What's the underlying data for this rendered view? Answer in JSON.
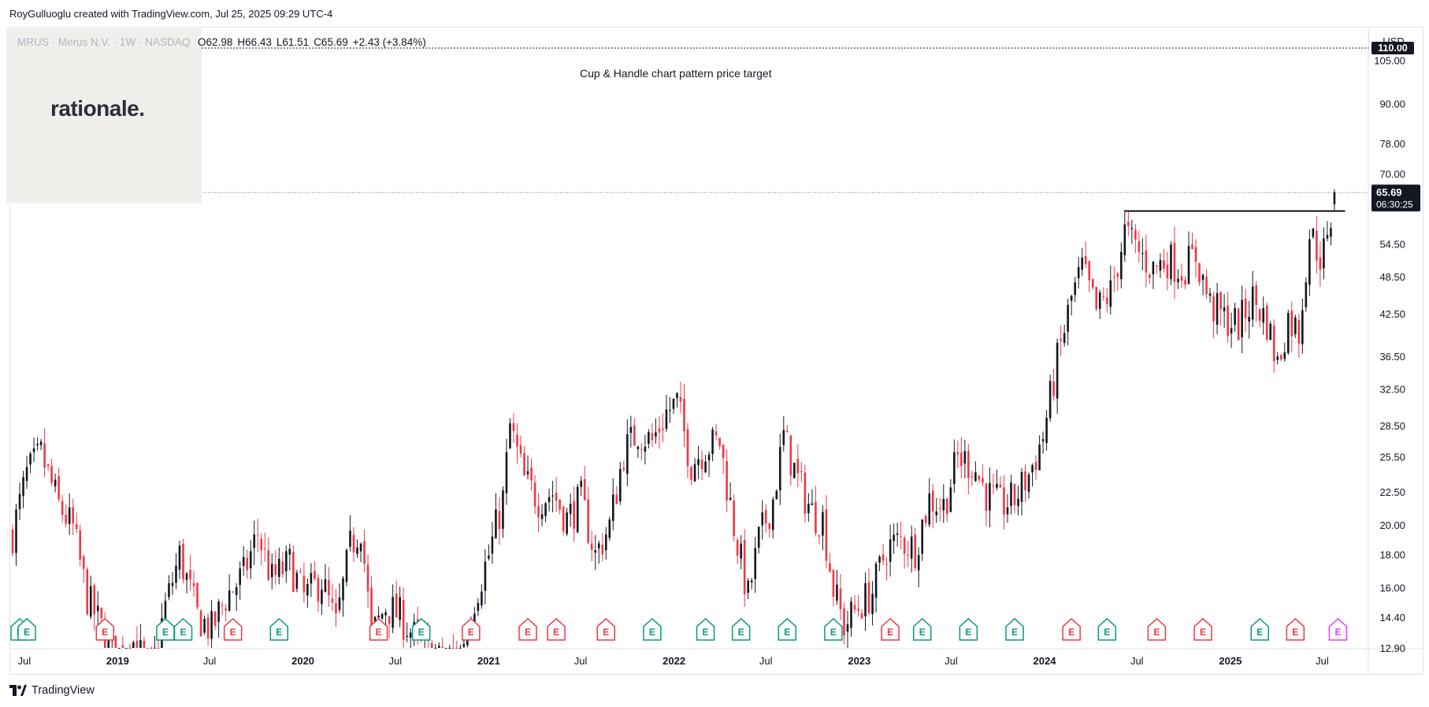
{
  "header": {
    "attribution": "RoyGulluoglu created with TradingView.com, Jul 25, 2025 09:29 UTC-4"
  },
  "legend": {
    "symbol": "MRUS · Merus N.V. · 1W · NASDAQ",
    "open": "O62.98",
    "high": "H66.43",
    "low": "L61.51",
    "close": "C65.69",
    "change": "+2.43 (+3.84%)"
  },
  "logo": {
    "text": "rationale."
  },
  "currency": "USD",
  "annotation": "Cup & Handle chart pattern price target",
  "price_labels": {
    "target": "110.00",
    "last": "65.69",
    "countdown": "06:30:25"
  },
  "footer": {
    "brand": "TradingView"
  },
  "colors": {
    "up": "#131722",
    "down": "#f23645",
    "earnings_reported": "#089981",
    "earnings_future": "#e040fb"
  },
  "chart_data": {
    "type": "candlestick",
    "title": "MRUS · Merus N.V. · 1W · NASDAQ",
    "interval": "1W",
    "y_scale": "log",
    "ylim": [
      12.9,
      118
    ],
    "y_ticks": [
      105.0,
      90.0,
      78.0,
      70.0,
      54.5,
      48.5,
      42.5,
      36.5,
      32.5,
      28.5,
      25.5,
      22.5,
      20.0,
      18.0,
      16.0,
      14.4,
      12.9
    ],
    "y_tick_labels": [
      "105.00",
      "90.00",
      "78.00",
      "70.00",
      "54.50",
      "48.50",
      "42.50",
      "36.50",
      "32.50",
      "28.50",
      "25.50",
      "22.50",
      "20.00",
      "18.00",
      "16.00",
      "14.40",
      "12.90"
    ],
    "x_ticks": [
      {
        "label": "Jul",
        "date": "2018-07-01"
      },
      {
        "label": "2019",
        "date": "2019-01-01"
      },
      {
        "label": "Jul",
        "date": "2019-07-01"
      },
      {
        "label": "2020",
        "date": "2020-01-01"
      },
      {
        "label": "Jul",
        "date": "2020-07-01"
      },
      {
        "label": "2021",
        "date": "2021-01-01"
      },
      {
        "label": "Jul",
        "date": "2021-07-01"
      },
      {
        "label": "2022",
        "date": "2022-01-01"
      },
      {
        "label": "Jul",
        "date": "2022-07-01"
      },
      {
        "label": "2023",
        "date": "2023-01-01"
      },
      {
        "label": "Jul",
        "date": "2023-07-01"
      },
      {
        "label": "2024",
        "date": "2024-01-01"
      },
      {
        "label": "Jul",
        "date": "2024-07-01"
      },
      {
        "label": "2025",
        "date": "2025-01-01"
      },
      {
        "label": "Jul",
        "date": "2025-07-01"
      }
    ],
    "close_path": [
      [
        "2018-06-08",
        19.5
      ],
      [
        "2018-07-06",
        24.0
      ],
      [
        "2018-08-03",
        25.8
      ],
      [
        "2018-09-07",
        21.5
      ],
      [
        "2018-10-05",
        19.8
      ],
      [
        "2018-11-02",
        15.5
      ],
      [
        "2018-12-07",
        13.5
      ],
      [
        "2018-12-28",
        12.5
      ],
      [
        "2019-02-01",
        13.2
      ],
      [
        "2019-03-08",
        11.8
      ],
      [
        "2019-04-05",
        15.0
      ],
      [
        "2019-05-03",
        18.0
      ],
      [
        "2019-06-07",
        14.5
      ],
      [
        "2019-07-05",
        13.8
      ],
      [
        "2019-08-02",
        15.5
      ],
      [
        "2019-09-06",
        16.8
      ],
      [
        "2019-10-04",
        19.5
      ],
      [
        "2019-11-01",
        16.5
      ],
      [
        "2019-12-06",
        17.5
      ],
      [
        "2020-01-03",
        15.5
      ],
      [
        "2020-02-07",
        16.5
      ],
      [
        "2020-03-06",
        14.0
      ],
      [
        "2020-04-03",
        18.5
      ],
      [
        "2020-04-24",
        20.0
      ],
      [
        "2020-05-15",
        13.5
      ],
      [
        "2020-06-12",
        15.0
      ],
      [
        "2020-07-10",
        14.5
      ],
      [
        "2020-08-07",
        13.5
      ],
      [
        "2020-09-04",
        12.7
      ],
      [
        "2020-10-02",
        12.3
      ],
      [
        "2020-11-06",
        12.8
      ],
      [
        "2020-12-04",
        15.5
      ],
      [
        "2021-01-01",
        18.0
      ],
      [
        "2021-01-29",
        22.0
      ],
      [
        "2021-02-12",
        28.5
      ],
      [
        "2021-03-12",
        23.5
      ],
      [
        "2021-04-09",
        22.0
      ],
      [
        "2021-05-07",
        22.5
      ],
      [
        "2021-06-04",
        20.5
      ],
      [
        "2021-07-02",
        22.0
      ],
      [
        "2021-07-30",
        18.0
      ],
      [
        "2021-08-27",
        20.0
      ],
      [
        "2021-09-24",
        26.0
      ],
      [
        "2021-10-22",
        28.0
      ],
      [
        "2021-11-19",
        27.0
      ],
      [
        "2021-12-17",
        30.0
      ],
      [
        "2022-01-07",
        31.0
      ],
      [
        "2022-02-04",
        25.0
      ],
      [
        "2022-03-04",
        26.5
      ],
      [
        "2022-04-01",
        27.0
      ],
      [
        "2022-04-29",
        20.0
      ],
      [
        "2022-05-27",
        15.5
      ],
      [
        "2022-06-17",
        19.0
      ],
      [
        "2022-07-15",
        22.0
      ],
      [
        "2022-08-05",
        27.5
      ],
      [
        "2022-09-02",
        23.5
      ],
      [
        "2022-09-30",
        21.0
      ],
      [
        "2022-10-21",
        20.5
      ],
      [
        "2022-11-11",
        16.0
      ],
      [
        "2022-12-02",
        14.0
      ],
      [
        "2022-12-30",
        15.0
      ],
      [
        "2023-01-27",
        15.8
      ],
      [
        "2023-02-24",
        18.5
      ],
      [
        "2023-03-24",
        19.0
      ],
      [
        "2023-04-21",
        18.5
      ],
      [
        "2023-05-19",
        22.0
      ],
      [
        "2023-06-16",
        21.5
      ],
      [
        "2023-07-14",
        25.5
      ],
      [
        "2023-08-11",
        25.0
      ],
      [
        "2023-09-08",
        22.5
      ],
      [
        "2023-10-06",
        21.5
      ],
      [
        "2023-11-03",
        22.0
      ],
      [
        "2023-12-01",
        24.0
      ],
      [
        "2023-12-29",
        27.5
      ],
      [
        "2024-01-26",
        36.0
      ],
      [
        "2024-02-23",
        45.0
      ],
      [
        "2024-03-15",
        50.0
      ],
      [
        "2024-04-12",
        43.0
      ],
      [
        "2024-05-10",
        46.0
      ],
      [
        "2024-06-07",
        57.0
      ],
      [
        "2024-07-05",
        53.0
      ],
      [
        "2024-08-02",
        50.0
      ],
      [
        "2024-08-30",
        52.0
      ],
      [
        "2024-09-27",
        50.0
      ],
      [
        "2024-10-25",
        52.5
      ],
      [
        "2024-11-22",
        44.0
      ],
      [
        "2024-12-20",
        42.0
      ],
      [
        "2025-01-17",
        41.0
      ],
      [
        "2025-02-14",
        45.0
      ],
      [
        "2025-03-14",
        41.5
      ],
      [
        "2025-04-04",
        35.5
      ],
      [
        "2025-04-25",
        42.0
      ],
      [
        "2025-05-16",
        40.0
      ],
      [
        "2025-06-06",
        57.0
      ],
      [
        "2025-06-27",
        52.5
      ],
      [
        "2025-07-11",
        54.0
      ],
      [
        "2025-07-25",
        65.69
      ]
    ],
    "last_bar": {
      "open": 62.98,
      "high": 66.43,
      "low": 61.51,
      "close": 65.69
    },
    "annotations": [
      {
        "text": "Cup & Handle chart pattern price target",
        "price": 110.0
      },
      {
        "text": "",
        "price": 61.5,
        "from": "2024-06-07",
        "to": "2025-08-15"
      }
    ],
    "events": [
      {
        "date": "2018-06-22",
        "type": "earnings",
        "status": "reported"
      },
      {
        "date": "2018-07-06",
        "type": "earnings",
        "status": "reported"
      },
      {
        "date": "2018-12-07",
        "type": "earnings",
        "status": "missed"
      },
      {
        "date": "2019-04-05",
        "type": "earnings",
        "status": "reported"
      },
      {
        "date": "2019-05-10",
        "type": "earnings",
        "status": "reported"
      },
      {
        "date": "2019-08-16",
        "type": "earnings",
        "status": "missed"
      },
      {
        "date": "2019-11-15",
        "type": "earnings",
        "status": "reported"
      },
      {
        "date": "2020-05-29",
        "type": "earnings",
        "status": "missed"
      },
      {
        "date": "2020-08-21",
        "type": "earnings",
        "status": "reported"
      },
      {
        "date": "2020-11-27",
        "type": "earnings",
        "status": "missed"
      },
      {
        "date": "2021-03-19",
        "type": "earnings",
        "status": "missed"
      },
      {
        "date": "2021-05-14",
        "type": "earnings",
        "status": "missed"
      },
      {
        "date": "2021-08-20",
        "type": "earnings",
        "status": "missed"
      },
      {
        "date": "2021-11-19",
        "type": "earnings",
        "status": "reported"
      },
      {
        "date": "2022-03-04",
        "type": "earnings",
        "status": "reported"
      },
      {
        "date": "2022-05-13",
        "type": "earnings",
        "status": "reported"
      },
      {
        "date": "2022-08-12",
        "type": "earnings",
        "status": "reported"
      },
      {
        "date": "2022-11-11",
        "type": "earnings",
        "status": "reported"
      },
      {
        "date": "2023-03-03",
        "type": "earnings",
        "status": "missed"
      },
      {
        "date": "2023-05-05",
        "type": "earnings",
        "status": "reported"
      },
      {
        "date": "2023-08-04",
        "type": "earnings",
        "status": "reported"
      },
      {
        "date": "2023-11-03",
        "type": "earnings",
        "status": "reported"
      },
      {
        "date": "2024-02-23",
        "type": "earnings",
        "status": "missed"
      },
      {
        "date": "2024-05-03",
        "type": "earnings",
        "status": "reported"
      },
      {
        "date": "2024-08-09",
        "type": "earnings",
        "status": "missed"
      },
      {
        "date": "2024-11-08",
        "type": "earnings",
        "status": "missed"
      },
      {
        "date": "2025-02-28",
        "type": "earnings",
        "status": "reported"
      },
      {
        "date": "2025-05-09",
        "type": "earnings",
        "status": "missed"
      },
      {
        "date": "2025-08-01",
        "type": "earnings",
        "status": "upcoming"
      }
    ],
    "grid": false,
    "legend": "top-left"
  }
}
